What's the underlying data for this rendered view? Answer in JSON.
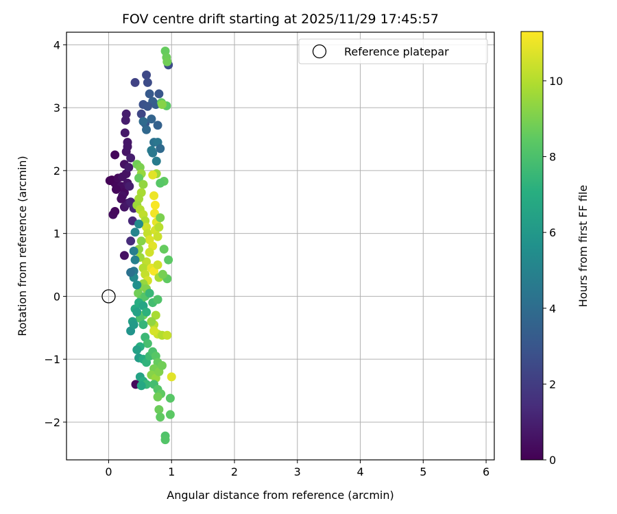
{
  "chart_data": {
    "type": "scatter",
    "title": "FOV centre drift starting at 2025/11/29 17:45:57",
    "xlabel": "Angular distance from reference (arcmin)",
    "ylabel": "Rotation from reference (arcmin)",
    "xlim": [
      -0.67,
      6.13
    ],
    "ylim": [
      -2.6,
      4.2
    ],
    "x_ticks": [
      0,
      1,
      2,
      3,
      4,
      5,
      6
    ],
    "y_ticks": [
      -2,
      -1,
      0,
      1,
      2,
      3,
      4
    ],
    "x_tick_labels": [
      "0",
      "1",
      "2",
      "3",
      "4",
      "5",
      "6"
    ],
    "y_tick_labels": [
      "−2",
      "−1",
      "0",
      "1",
      "2",
      "3",
      "4"
    ],
    "grid": true,
    "colormap": "viridis",
    "colorbar": {
      "label": "Hours from first FF file",
      "min": 0,
      "max": 11.3,
      "ticks": [
        0,
        2,
        4,
        6,
        8,
        10
      ],
      "tick_labels": [
        "0",
        "2",
        "4",
        "6",
        "8",
        "10"
      ]
    },
    "legend": {
      "position": "top-right",
      "entries": [
        {
          "label": "Reference platepar",
          "marker": "open-circle"
        }
      ]
    },
    "reference_point": {
      "x": 0,
      "y": 0,
      "label": "Reference platepar"
    },
    "points": [
      {
        "x": 0.05,
        "y": 1.85,
        "h": 0.0
      },
      {
        "x": 0.1,
        "y": 1.8,
        "h": 0.2
      },
      {
        "x": 0.02,
        "y": 1.84,
        "h": 0.1
      },
      {
        "x": 0.15,
        "y": 1.88,
        "h": 0.3
      },
      {
        "x": 0.2,
        "y": 1.75,
        "h": 0.4
      },
      {
        "x": 0.12,
        "y": 1.7,
        "h": 0.2
      },
      {
        "x": 0.22,
        "y": 1.9,
        "h": 0.5
      },
      {
        "x": 0.25,
        "y": 1.65,
        "h": 0.3
      },
      {
        "x": 0.3,
        "y": 1.8,
        "h": 0.6
      },
      {
        "x": 0.28,
        "y": 1.95,
        "h": 0.5
      },
      {
        "x": 0.07,
        "y": 1.3,
        "h": 0.4
      },
      {
        "x": 0.1,
        "y": 1.35,
        "h": 0.3
      },
      {
        "x": 0.25,
        "y": 1.42,
        "h": 0.6
      },
      {
        "x": 0.3,
        "y": 1.48,
        "h": 0.7
      },
      {
        "x": 0.22,
        "y": 1.6,
        "h": 0.5
      },
      {
        "x": 0.2,
        "y": 1.55,
        "h": 0.4
      },
      {
        "x": 0.1,
        "y": 2.25,
        "h": 0.2
      },
      {
        "x": 0.25,
        "y": 2.1,
        "h": 0.5
      },
      {
        "x": 0.28,
        "y": 2.3,
        "h": 0.6
      },
      {
        "x": 0.3,
        "y": 2.45,
        "h": 0.7
      },
      {
        "x": 0.26,
        "y": 2.6,
        "h": 0.8
      },
      {
        "x": 0.27,
        "y": 2.8,
        "h": 0.9
      },
      {
        "x": 0.28,
        "y": 2.9,
        "h": 0.9
      },
      {
        "x": 0.32,
        "y": 2.05,
        "h": 0.8
      },
      {
        "x": 0.35,
        "y": 2.2,
        "h": 0.9
      },
      {
        "x": 0.3,
        "y": 2.38,
        "h": 0.7
      },
      {
        "x": 0.33,
        "y": 1.75,
        "h": 0.9
      },
      {
        "x": 0.35,
        "y": 1.5,
        "h": 1.0
      },
      {
        "x": 0.4,
        "y": 1.4,
        "h": 1.2
      },
      {
        "x": 0.38,
        "y": 1.2,
        "h": 1.3
      },
      {
        "x": 0.35,
        "y": 0.88,
        "h": 1.4
      },
      {
        "x": 0.25,
        "y": 0.65,
        "h": 0.5
      },
      {
        "x": 0.43,
        "y": -1.4,
        "h": 0.3
      },
      {
        "x": 0.42,
        "y": 3.4,
        "h": 2.2
      },
      {
        "x": 0.6,
        "y": 3.52,
        "h": 2.5
      },
      {
        "x": 0.62,
        "y": 3.4,
        "h": 2.6
      },
      {
        "x": 0.55,
        "y": 3.05,
        "h": 2.8
      },
      {
        "x": 0.52,
        "y": 2.9,
        "h": 2.4
      },
      {
        "x": 0.58,
        "y": 2.75,
        "h": 3.0
      },
      {
        "x": 0.65,
        "y": 3.22,
        "h": 3.2
      },
      {
        "x": 0.7,
        "y": 3.1,
        "h": 3.4
      },
      {
        "x": 0.75,
        "y": 3.05,
        "h": 3.3
      },
      {
        "x": 0.8,
        "y": 3.22,
        "h": 3.0
      },
      {
        "x": 0.78,
        "y": 2.72,
        "h": 3.5
      },
      {
        "x": 0.68,
        "y": 2.82,
        "h": 3.6
      },
      {
        "x": 0.6,
        "y": 2.65,
        "h": 3.8
      },
      {
        "x": 0.55,
        "y": 2.78,
        "h": 3.9
      },
      {
        "x": 0.72,
        "y": 2.45,
        "h": 4.2
      },
      {
        "x": 0.78,
        "y": 2.45,
        "h": 4.4
      },
      {
        "x": 0.82,
        "y": 2.35,
        "h": 3.9
      },
      {
        "x": 0.68,
        "y": 2.32,
        "h": 4.6
      },
      {
        "x": 0.76,
        "y": 2.15,
        "h": 4.7
      },
      {
        "x": 0.7,
        "y": 2.28,
        "h": 4.5
      },
      {
        "x": 0.62,
        "y": 3.02,
        "h": 2.9
      },
      {
        "x": 0.95,
        "y": 3.68,
        "h": 2.6
      },
      {
        "x": 0.9,
        "y": 3.9,
        "h": 8.6
      },
      {
        "x": 0.92,
        "y": 3.8,
        "h": 8.7
      },
      {
        "x": 0.93,
        "y": 3.73,
        "h": 8.8
      },
      {
        "x": 0.84,
        "y": 3.08,
        "h": 8.5
      },
      {
        "x": 0.92,
        "y": 3.03,
        "h": 8.4
      },
      {
        "x": 0.85,
        "y": 3.05,
        "h": 9.2
      },
      {
        "x": 0.88,
        "y": 1.83,
        "h": 8.5
      },
      {
        "x": 0.82,
        "y": 1.8,
        "h": 8.3
      },
      {
        "x": 0.76,
        "y": 1.95,
        "h": 9.6
      },
      {
        "x": 0.7,
        "y": 1.93,
        "h": 10.8
      },
      {
        "x": 0.45,
        "y": 2.1,
        "h": 8.8
      },
      {
        "x": 0.5,
        "y": 2.05,
        "h": 9.0
      },
      {
        "x": 0.52,
        "y": 1.95,
        "h": 9.5
      },
      {
        "x": 0.48,
        "y": 1.88,
        "h": 8.6
      },
      {
        "x": 0.55,
        "y": 1.78,
        "h": 9.4
      },
      {
        "x": 0.52,
        "y": 1.65,
        "h": 9.8
      },
      {
        "x": 0.48,
        "y": 1.55,
        "h": 9.7
      },
      {
        "x": 0.45,
        "y": 1.45,
        "h": 9.6
      },
      {
        "x": 0.5,
        "y": 1.38,
        "h": 10.0
      },
      {
        "x": 0.55,
        "y": 1.3,
        "h": 10.2
      },
      {
        "x": 0.58,
        "y": 1.2,
        "h": 9.9
      },
      {
        "x": 0.6,
        "y": 1.1,
        "h": 10.5
      },
      {
        "x": 0.62,
        "y": 1.0,
        "h": 10.3
      },
      {
        "x": 0.65,
        "y": 0.9,
        "h": 10.7
      },
      {
        "x": 0.72,
        "y": 1.6,
        "h": 11.0
      },
      {
        "x": 0.74,
        "y": 1.45,
        "h": 11.2
      },
      {
        "x": 0.73,
        "y": 1.32,
        "h": 11.1
      },
      {
        "x": 0.76,
        "y": 1.18,
        "h": 10.9
      },
      {
        "x": 0.74,
        "y": 1.05,
        "h": 10.6
      },
      {
        "x": 0.78,
        "y": 0.95,
        "h": 10.4
      },
      {
        "x": 0.8,
        "y": 1.1,
        "h": 10.1
      },
      {
        "x": 0.82,
        "y": 1.25,
        "h": 9.0
      },
      {
        "x": 0.7,
        "y": 0.8,
        "h": 10.8
      },
      {
        "x": 0.65,
        "y": 0.7,
        "h": 10.5
      },
      {
        "x": 0.6,
        "y": 0.55,
        "h": 10.2
      },
      {
        "x": 0.55,
        "y": 0.45,
        "h": 10.0
      },
      {
        "x": 0.5,
        "y": 0.62,
        "h": 9.6
      },
      {
        "x": 0.48,
        "y": 0.75,
        "h": 9.4
      },
      {
        "x": 0.52,
        "y": 0.88,
        "h": 9.2
      },
      {
        "x": 0.58,
        "y": 0.35,
        "h": 10.3
      },
      {
        "x": 0.62,
        "y": 0.25,
        "h": 10.6
      },
      {
        "x": 0.68,
        "y": 0.45,
        "h": 10.9
      },
      {
        "x": 0.72,
        "y": 0.4,
        "h": 11.2
      },
      {
        "x": 0.78,
        "y": 0.5,
        "h": 10.5
      },
      {
        "x": 0.8,
        "y": 0.3,
        "h": 9.8
      },
      {
        "x": 0.88,
        "y": 0.75,
        "h": 8.6
      },
      {
        "x": 0.95,
        "y": 0.58,
        "h": 8.4
      },
      {
        "x": 0.93,
        "y": 0.28,
        "h": 8.5
      },
      {
        "x": 0.86,
        "y": 0.35,
        "h": 8.9
      },
      {
        "x": 0.55,
        "y": 0.2,
        "h": 9.5
      },
      {
        "x": 0.5,
        "y": 0.15,
        "h": 9.2
      },
      {
        "x": 0.47,
        "y": 0.05,
        "h": 8.8
      },
      {
        "x": 0.52,
        "y": -0.05,
        "h": 8.5
      },
      {
        "x": 0.58,
        "y": 0.0,
        "h": 8.2
      },
      {
        "x": 0.6,
        "y": 0.12,
        "h": 9.1
      },
      {
        "x": 0.65,
        "y": 0.05,
        "h": 7.5
      },
      {
        "x": 0.7,
        "y": -0.1,
        "h": 7.8
      },
      {
        "x": 0.78,
        "y": -0.05,
        "h": 8.1
      },
      {
        "x": 0.75,
        "y": -0.3,
        "h": 9.8
      },
      {
        "x": 0.72,
        "y": -0.45,
        "h": 10.1
      },
      {
        "x": 0.78,
        "y": -0.6,
        "h": 10.4
      },
      {
        "x": 0.85,
        "y": -0.62,
        "h": 10.0
      },
      {
        "x": 0.93,
        "y": -0.62,
        "h": 10.3
      },
      {
        "x": 0.72,
        "y": -0.55,
        "h": 10.6
      },
      {
        "x": 0.68,
        "y": -0.4,
        "h": 9.4
      },
      {
        "x": 0.55,
        "y": -0.3,
        "h": 8.9
      },
      {
        "x": 0.5,
        "y": -0.35,
        "h": 8.0
      },
      {
        "x": 0.42,
        "y": -0.2,
        "h": 6.8
      },
      {
        "x": 0.38,
        "y": -0.4,
        "h": 6.3
      },
      {
        "x": 0.35,
        "y": -0.55,
        "h": 5.8
      },
      {
        "x": 0.4,
        "y": -0.45,
        "h": 6.1
      },
      {
        "x": 0.45,
        "y": -0.25,
        "h": 6.5
      },
      {
        "x": 0.48,
        "y": -0.1,
        "h": 7.0
      },
      {
        "x": 0.55,
        "y": -0.15,
        "h": 6.6
      },
      {
        "x": 0.6,
        "y": -0.25,
        "h": 7.2
      },
      {
        "x": 0.55,
        "y": -0.45,
        "h": 7.4
      },
      {
        "x": 0.58,
        "y": -0.65,
        "h": 7.6
      },
      {
        "x": 0.62,
        "y": -0.75,
        "h": 7.9
      },
      {
        "x": 0.5,
        "y": -0.8,
        "h": 7.1
      },
      {
        "x": 0.45,
        "y": -0.85,
        "h": 6.4
      },
      {
        "x": 0.48,
        "y": -0.98,
        "h": 6.2
      },
      {
        "x": 0.55,
        "y": -1.0,
        "h": 6.9
      },
      {
        "x": 0.6,
        "y": -1.05,
        "h": 7.3
      },
      {
        "x": 0.65,
        "y": -0.95,
        "h": 7.7
      },
      {
        "x": 0.7,
        "y": -0.88,
        "h": 8.0
      },
      {
        "x": 0.75,
        "y": -0.95,
        "h": 8.3
      },
      {
        "x": 0.78,
        "y": -1.05,
        "h": 8.6
      },
      {
        "x": 0.72,
        "y": -1.15,
        "h": 8.9
      },
      {
        "x": 0.68,
        "y": -1.25,
        "h": 9.2
      },
      {
        "x": 0.75,
        "y": -1.3,
        "h": 9.5
      },
      {
        "x": 0.8,
        "y": -1.2,
        "h": 9.1
      },
      {
        "x": 0.85,
        "y": -1.1,
        "h": 8.8
      },
      {
        "x": 0.5,
        "y": -1.28,
        "h": 6.5
      },
      {
        "x": 0.55,
        "y": -1.35,
        "h": 7.0
      },
      {
        "x": 0.6,
        "y": -1.4,
        "h": 7.5
      },
      {
        "x": 0.52,
        "y": -1.42,
        "h": 6.7
      },
      {
        "x": 0.72,
        "y": -1.4,
        "h": 7.8
      },
      {
        "x": 0.78,
        "y": -1.48,
        "h": 8.2
      },
      {
        "x": 0.83,
        "y": -1.55,
        "h": 8.5
      },
      {
        "x": 0.78,
        "y": -1.6,
        "h": 8.8
      },
      {
        "x": 0.8,
        "y": -1.8,
        "h": 8.7
      },
      {
        "x": 0.82,
        "y": -1.92,
        "h": 8.5
      },
      {
        "x": 0.98,
        "y": -1.62,
        "h": 8.3
      },
      {
        "x": 0.98,
        "y": -1.88,
        "h": 8.4
      },
      {
        "x": 0.9,
        "y": -2.22,
        "h": 8.1
      },
      {
        "x": 0.9,
        "y": -2.28,
        "h": 8.2
      },
      {
        "x": 1.0,
        "y": -1.28,
        "h": 10.8
      },
      {
        "x": 0.4,
        "y": 0.4,
        "h": 4.5
      },
      {
        "x": 0.42,
        "y": 0.58,
        "h": 4.9
      },
      {
        "x": 0.4,
        "y": 0.3,
        "h": 5.3
      },
      {
        "x": 0.35,
        "y": 0.38,
        "h": 4.2
      },
      {
        "x": 0.45,
        "y": 0.18,
        "h": 5.6
      },
      {
        "x": 0.42,
        "y": 1.02,
        "h": 5.1
      },
      {
        "x": 0.48,
        "y": 1.15,
        "h": 5.4
      },
      {
        "x": 0.4,
        "y": 0.72,
        "h": 4.8
      }
    ]
  }
}
